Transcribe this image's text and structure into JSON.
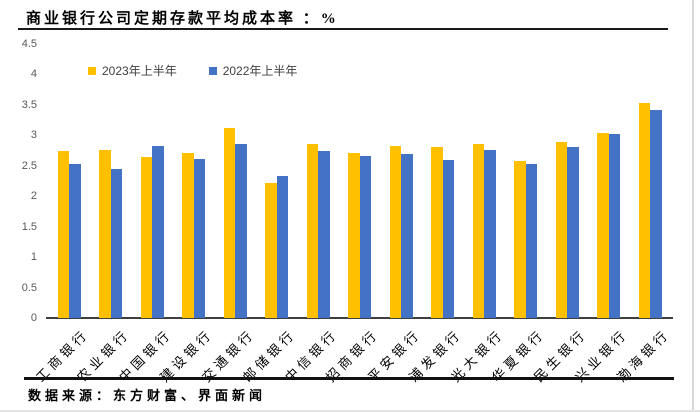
{
  "page": {
    "title": "商业银行公司定期存款平均成本率 ：%",
    "source_note": "数据来源：东方财富、界面新闻"
  },
  "chart_data": {
    "type": "bar",
    "title": "商业银行公司定期存款平均成本率 ：%",
    "categories": [
      "工商银行",
      "农业银行",
      "中国银行",
      "建设银行",
      "交通银行",
      "邮储银行",
      "中信银行",
      "招商银行",
      "平安银行",
      "浦发银行",
      "光大银行",
      "华夏银行",
      "民生银行",
      "兴业银行",
      "渤海银行"
    ],
    "series": [
      {
        "name": "2023年上半年",
        "color": "#FFC000",
        "values": [
          2.74,
          2.75,
          2.64,
          2.71,
          3.11,
          2.21,
          2.86,
          2.71,
          2.82,
          2.8,
          2.85,
          2.58,
          2.88,
          3.03,
          3.53
        ]
      },
      {
        "name": "2022年上半年",
        "color": "#4472C4",
        "values": [
          2.52,
          2.45,
          2.82,
          2.61,
          2.86,
          2.32,
          2.73,
          2.66,
          2.69,
          2.59,
          2.76,
          2.53,
          2.81,
          3.01,
          3.41
        ]
      }
    ],
    "ylim": [
      0,
      4.5
    ],
    "ytick_labels": [
      "0",
      "0.5",
      "1",
      "1.5",
      "2",
      "2.5",
      "3",
      "3.5",
      "4",
      "4.5"
    ],
    "grid": false,
    "legend_position": "top-left-inside",
    "xlabel": "",
    "ylabel": "",
    "source_note": "数据来源：东方财富、界面新闻"
  },
  "colors": {
    "series_2023": "#FFC000",
    "series_2022": "#4472C4",
    "axis_text": "#595959",
    "text": "#000000"
  }
}
